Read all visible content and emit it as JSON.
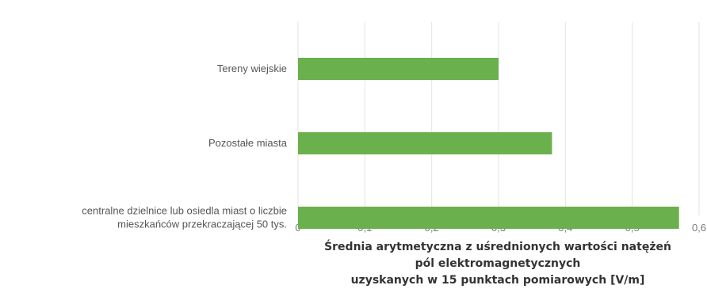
{
  "chart_data": {
    "type": "bar",
    "orientation": "horizontal",
    "categories": [
      [
        "Tereny wiejskie"
      ],
      [
        "Pozostałe miasta"
      ],
      [
        "centralne dzielnice lub osiedla miast o liczbie",
        "mieszkańców przekraczającej 50 tys."
      ]
    ],
    "values": [
      0.3,
      0.38,
      0.57
    ],
    "xlabel": [
      "Średnia arytmetyczna z uśrednionych wartości natężeń",
      "pól elektromagnetycznych",
      "uzyskanych w 15 punktach pomiarowych [V/m]"
    ],
    "ylabel": "",
    "xlim": [
      0,
      0.6
    ],
    "ticks": [
      "0",
      "0,1",
      "0,2",
      "0,3",
      "0,4",
      "0,5",
      "0,6"
    ],
    "grid": true,
    "bar_color": "#6ab04c"
  }
}
